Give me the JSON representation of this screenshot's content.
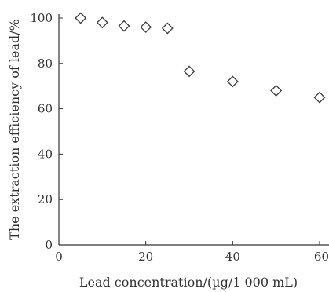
{
  "chart_data": {
    "type": "scatter",
    "title": "",
    "xlabel": "Lead concentration/(µg/1 000 mL)",
    "ylabel": "The extraction efficiency of lead/%",
    "xlim": [
      0,
      60
    ],
    "ylim": [
      0,
      100
    ],
    "xticks": [
      0,
      20,
      40,
      60
    ],
    "yticks": [
      0,
      20,
      40,
      60,
      80,
      100
    ],
    "grid": false,
    "legend": "none",
    "marker": "diamond-open",
    "marker_color": "#444444",
    "series": [
      {
        "points": [
          {
            "x": 5,
            "y": 100
          },
          {
            "x": 10,
            "y": 98
          },
          {
            "x": 15,
            "y": 96.5
          },
          {
            "x": 20,
            "y": 96
          },
          {
            "x": 25,
            "y": 95.5
          },
          {
            "x": 30,
            "y": 76.5
          },
          {
            "x": 40,
            "y": 72
          },
          {
            "x": 50,
            "y": 68
          },
          {
            "x": 60,
            "y": 65
          }
        ]
      }
    ]
  }
}
